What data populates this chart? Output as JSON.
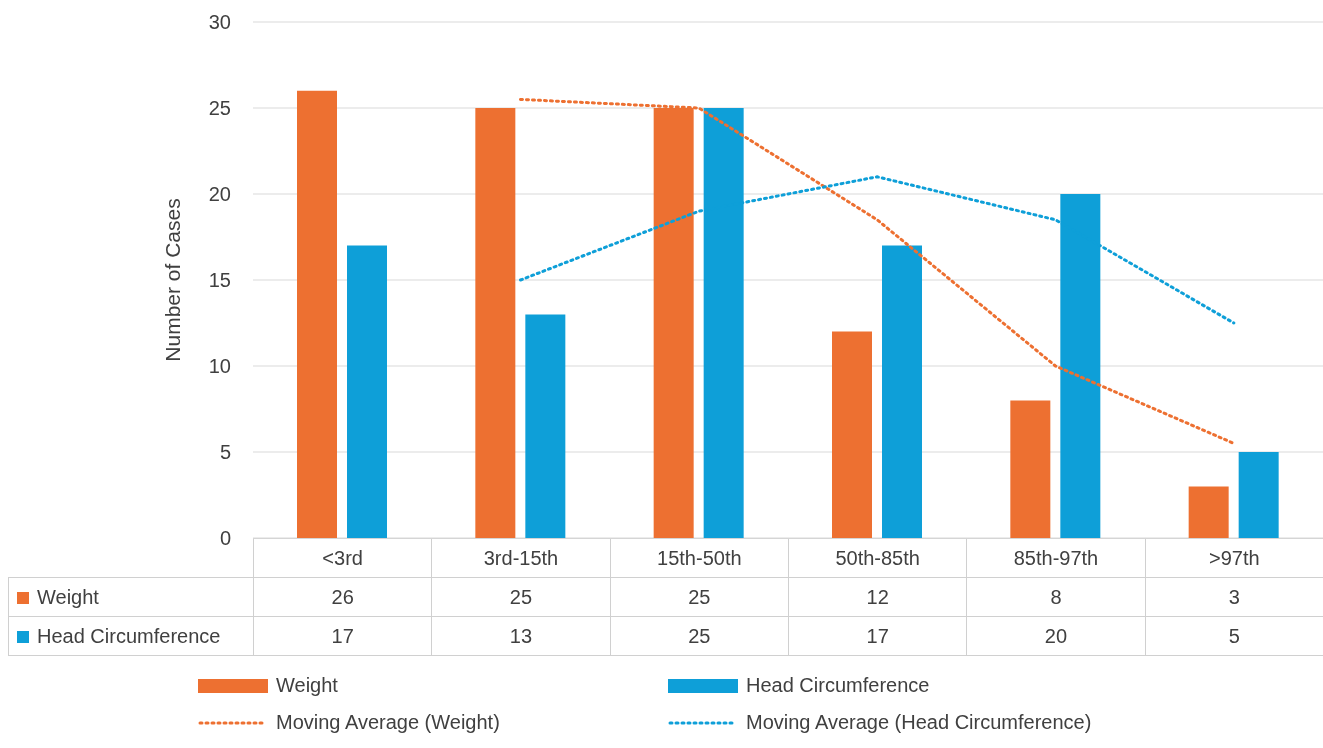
{
  "chart_data": {
    "type": "bar",
    "ylabel": "Number of Cases",
    "categories": [
      "<3rd",
      "3rd-15th",
      "15th-50th",
      "50th-85th",
      "85th-97th",
      ">97th"
    ],
    "series": [
      {
        "name": "Weight",
        "color": "#ed7031",
        "values": [
          26,
          25,
          25,
          12,
          8,
          3
        ]
      },
      {
        "name": "Head Circumference",
        "color": "#0e9fd8",
        "values": [
          17,
          13,
          25,
          17,
          20,
          5
        ]
      },
      {
        "name": "Moving Average (Weight)",
        "type": "line",
        "line_style": "dotted",
        "color": "#ed7031",
        "values": [
          null,
          25.5,
          25,
          18.5,
          10,
          5.5
        ],
        "value_labels": [
          null,
          null,
          null,
          null,
          null,
          null
        ]
      },
      {
        "name": "Moving Average (Head Circumference)",
        "type": "line",
        "line_style": "dotted",
        "color": "#0e9fd8",
        "values": [
          null,
          15,
          19,
          21,
          18.5,
          12.5
        ],
        "value_labels": [
          null,
          null,
          null,
          null,
          null,
          null
        ]
      }
    ],
    "ylim": [
      0,
      30
    ],
    "yticks": [
      0,
      5,
      10,
      15,
      20,
      25,
      30
    ],
    "grid": "y",
    "legend": "bottom",
    "data_labels": true
  }
}
